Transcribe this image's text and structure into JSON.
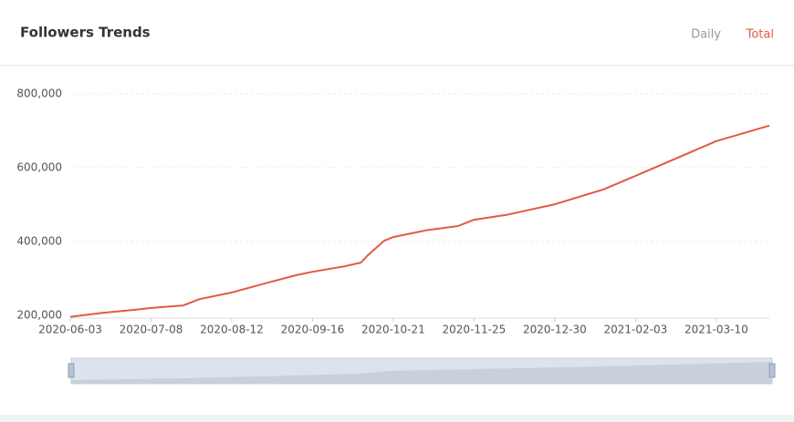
{
  "chart_data": {
    "type": "line",
    "title": "Followers Trends",
    "tabs": [
      "Daily",
      "Total"
    ],
    "active_tab": "Total",
    "x": [
      "2020-06-03",
      "2020-06-17",
      "2020-07-01",
      "2020-07-08",
      "2020-07-22",
      "2020-07-29",
      "2020-08-12",
      "2020-08-26",
      "2020-09-09",
      "2020-09-16",
      "2020-09-30",
      "2020-10-07",
      "2020-10-10",
      "2020-10-17",
      "2020-10-21",
      "2020-11-04",
      "2020-11-18",
      "2020-11-25",
      "2020-12-09",
      "2020-12-30",
      "2021-01-20",
      "2021-02-03",
      "2021-03-10",
      "2021-04-02"
    ],
    "series": [
      {
        "name": "Total",
        "color": "#e05a47",
        "values": [
          196000,
          207000,
          215000,
          220000,
          227000,
          244000,
          262000,
          286000,
          309000,
          318000,
          333000,
          343000,
          363000,
          402000,
          412000,
          430000,
          442000,
          459000,
          472000,
          501000,
          541000,
          578000,
          672000,
          714000
        ]
      }
    ],
    "xlim": [
      "2020-06-03",
      "2021-04-02"
    ],
    "xticks": [
      "2020-06-03",
      "2020-07-08",
      "2020-08-12",
      "2020-09-16",
      "2020-10-21",
      "2020-11-25",
      "2020-12-30",
      "2021-02-03",
      "2021-03-10"
    ],
    "ylim": [
      200000,
      800000
    ],
    "yticks": [
      {
        "value": 200000,
        "label": "200,000"
      },
      {
        "value": 400000,
        "label": "400,000"
      },
      {
        "value": 600000,
        "label": "600,000"
      },
      {
        "value": 800000,
        "label": "800,000"
      }
    ],
    "grid": true
  }
}
